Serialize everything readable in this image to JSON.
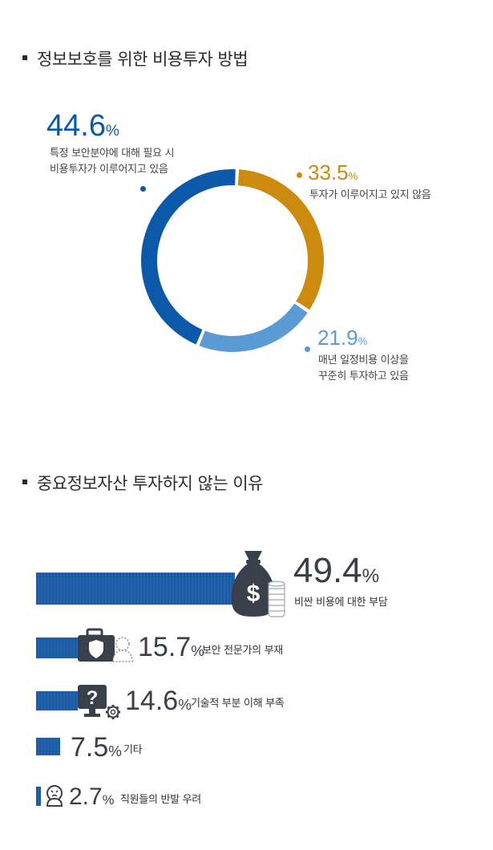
{
  "colors": {
    "dark_blue": "#0b59a8",
    "orange": "#cc8a0e",
    "light_blue": "#5b9bd5",
    "bar_blue": "#1e5fa8",
    "icon_dark": "#3a4049"
  },
  "section1": {
    "title": "정보보호를 위한 비용투자 방법"
  },
  "section2": {
    "title": "중요정보자산 투자하지 않는 이유"
  },
  "donut": {
    "slices": [
      {
        "value": "44.6",
        "symbol": "%",
        "line1": "특정 보안분야에 대해 필요 시",
        "line2": "비용투자가 이루어지고 있음",
        "color": "#0b59a8"
      },
      {
        "value": "33.5",
        "symbol": "%",
        "line1": "투자가 이루어지고 있지 않음",
        "line2": "",
        "color": "#cc8a0e"
      },
      {
        "value": "21.9",
        "symbol": "%",
        "line1": "매년 일정비용 이상을",
        "line2": "꾸준히 투자하고 있음",
        "color": "#5b9bd5"
      }
    ]
  },
  "bars": {
    "items": [
      {
        "value": "49.4",
        "symbol": "%",
        "label": "비싼 비용에 대한 부담",
        "icon": "money-bag-icon"
      },
      {
        "value": "15.7",
        "symbol": "%",
        "label": "보안 전문가의 부재",
        "icon": "security-expert-icon"
      },
      {
        "value": "14.6",
        "symbol": "%",
        "label": "기술적 부분 이해 부족",
        "icon": "monitor-question-icon"
      },
      {
        "value": "7.5",
        "symbol": "%",
        "label": "기타",
        "icon": ""
      },
      {
        "value": "2.7",
        "symbol": "%",
        "label": "직원들의 반발 우려",
        "icon": "worried-person-icon"
      }
    ]
  },
  "chart_data": [
    {
      "type": "pie",
      "title": "정보보호를 위한 비용투자 방법",
      "categories": [
        "특정 보안분야에 대해 필요 시 비용투자가 이루어지고 있음",
        "투자가 이루어지고 있지 않음",
        "매년 일정비용 이상을 꾸준히 투자하고 있음"
      ],
      "values": [
        44.6,
        33.5,
        21.9
      ]
    },
    {
      "type": "bar",
      "title": "중요정보자산 투자하지 않는 이유",
      "categories": [
        "비싼 비용에 대한 부담",
        "보안 전문가의 부재",
        "기술적 부분 이해 부족",
        "기타",
        "직원들의 반발 우려"
      ],
      "values": [
        49.4,
        15.7,
        14.6,
        7.5,
        2.7
      ]
    }
  ]
}
